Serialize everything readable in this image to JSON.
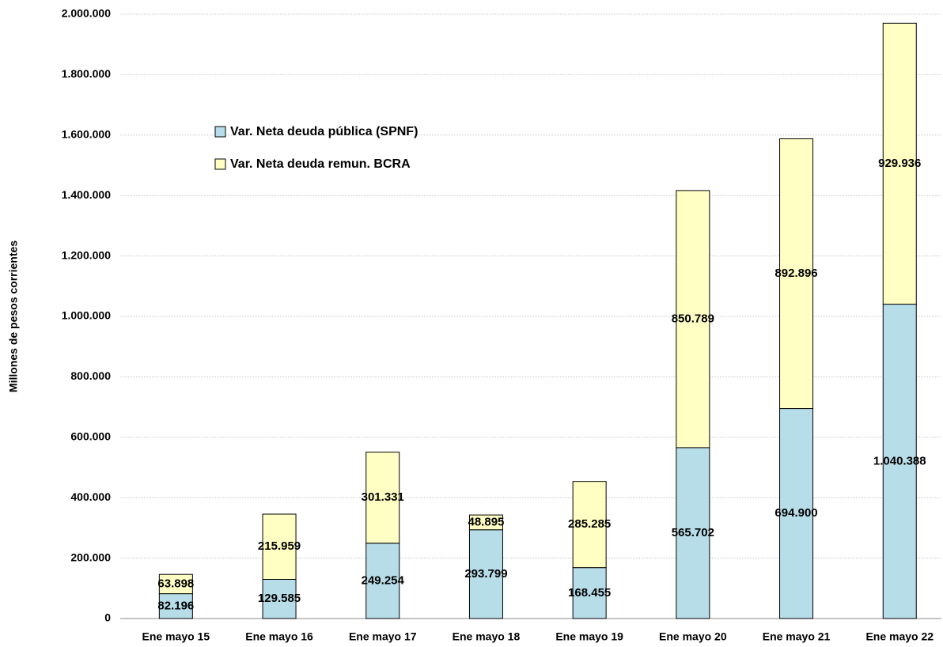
{
  "chart_data": {
    "type": "stacked_bar",
    "y_axis_label": "Millones de pesos corrientes",
    "categories": [
      "Ene mayo 15",
      "Ene mayo 16",
      "Ene mayo 17",
      "Ene mayo 18",
      "Ene mayo 19",
      "Ene mayo 20",
      "Ene mayo 21",
      "Ene mayo 22"
    ],
    "series": [
      {
        "name": "Var. Neta deuda pública (SPNF)",
        "color": "#b7dde8",
        "values": [
          82196,
          129585,
          249254,
          293799,
          168455,
          565702,
          694900,
          1040388
        ],
        "value_labels": [
          "82.196",
          "129.585",
          "249.254",
          "293.799",
          "168.455",
          "565.702",
          "694.900",
          "1.040.388"
        ]
      },
      {
        "name": "Var. Neta deuda remun. BCRA",
        "color": "#ffffc4",
        "values": [
          63898,
          215959,
          301331,
          48895,
          285285,
          850789,
          892896,
          929936
        ],
        "value_labels": [
          "63.898",
          "215.959",
          "301.331",
          "48.895",
          "285.285",
          "850.789",
          "892.896",
          "929.936"
        ]
      }
    ],
    "ylim": [
      0,
      2000000
    ],
    "yticks": [
      0,
      {
        "value": 200000,
        "label": "200.000"
      },
      {
        "value": 400000,
        "label": "400.000"
      },
      {
        "value": 600000,
        "label": "600.000"
      },
      {
        "value": 800000,
        "label": "800.000"
      },
      {
        "value": 1000000,
        "label": "1.000.000"
      },
      {
        "value": 1200000,
        "label": "1.200.000"
      },
      {
        "value": 1400000,
        "label": "1.400.000"
      },
      {
        "value": 1600000,
        "label": "1.600.000"
      },
      {
        "value": 1800000,
        "label": "1.800.000"
      },
      {
        "value": 2000000,
        "label": "2.000.000"
      }
    ],
    "grid": true,
    "legend": "upper-left"
  }
}
